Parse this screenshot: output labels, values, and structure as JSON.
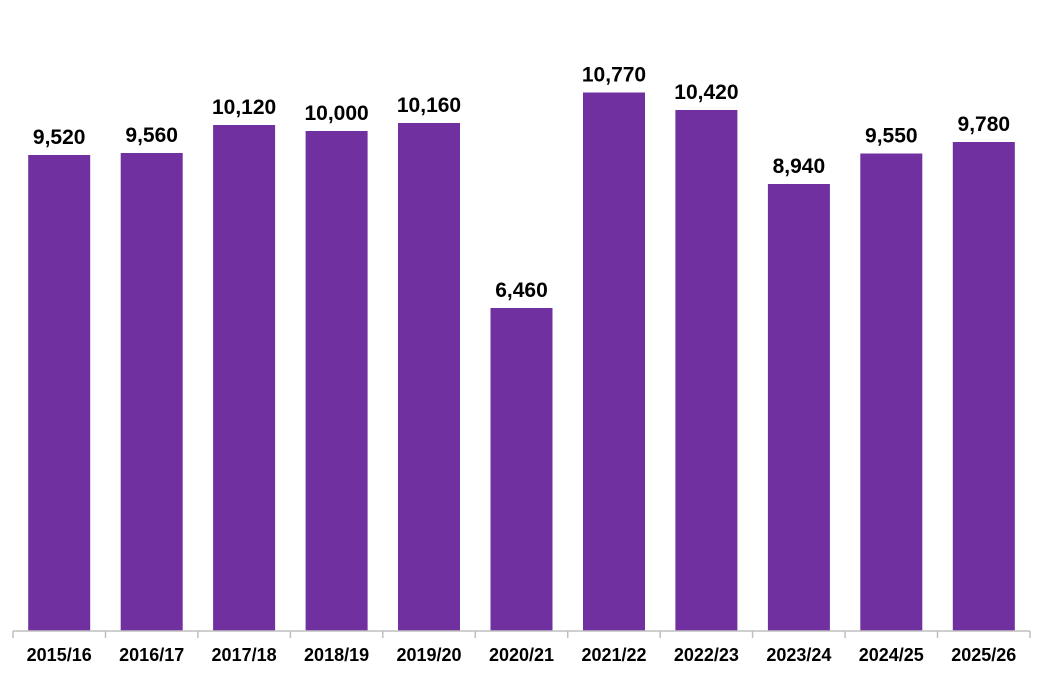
{
  "chart_data": {
    "type": "bar",
    "title": "",
    "xlabel": "",
    "ylabel": "",
    "categories": [
      "2015/16",
      "2016/17",
      "2017/18",
      "2018/19",
      "2019/20",
      "2020/21",
      "2021/22",
      "2022/23",
      "2023/24",
      "2024/25",
      "2025/26"
    ],
    "values": [
      9520,
      9560,
      10120,
      10000,
      10160,
      6460,
      10770,
      10420,
      8940,
      9550,
      9780
    ],
    "value_labels": [
      "9,520",
      "9,560",
      "10,120",
      "10,000",
      "10,160",
      "6,460",
      "10,770",
      "10,420",
      "8,940",
      "9,550",
      "9,780"
    ],
    "ylim": [
      0,
      12000
    ],
    "grid": false,
    "legend": "none",
    "bar_color": "#7030A0",
    "axis_color": "#BFBFBF"
  }
}
